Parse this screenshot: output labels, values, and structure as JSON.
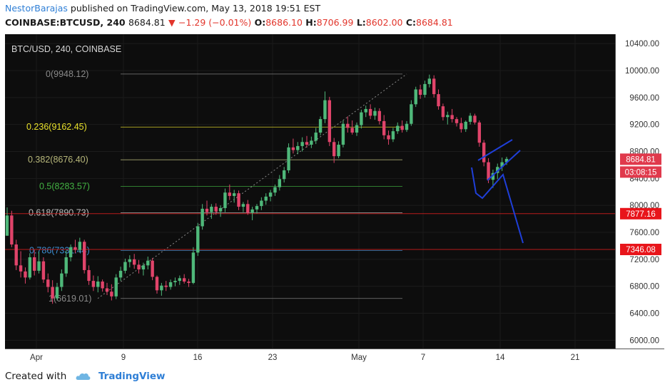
{
  "header": {
    "author": "NestorBarajas",
    "published_text": "published on TradingView.com, May 13, 2018 19:51 EST",
    "symbol": "COINBASE:BTCUSD, 240",
    "last": "8684.81",
    "change": "−1.29 (−0.01%)",
    "o_label": "O:",
    "o_value": "8686.10",
    "h_label": "H:",
    "h_value": "8706.99",
    "l_label": "L:",
    "l_value": "8602.00",
    "c_label": "C:",
    "c_value": "8684.81"
  },
  "footer": {
    "created_with": "Created with",
    "brand": "TradingView"
  },
  "chart_data": {
    "type": "candlestick",
    "title": "BTC/USD, 240, COINBASE",
    "ylim": [
      5800,
      10500
    ],
    "y_ticks": [
      "10400.00",
      "10000.00",
      "9600.00",
      "9200.00",
      "8800.00",
      "8400.00",
      "8000.00",
      "7600.00",
      "7200.00",
      "6800.00",
      "6400.00",
      "6000.00"
    ],
    "x_ticks": [
      "Apr",
      "9",
      "16",
      "23",
      "May",
      "7",
      "14",
      "21"
    ],
    "fibonacci": [
      {
        "label": "0(9948.12)",
        "price": 9948.12,
        "color": "#8a8a8a"
      },
      {
        "label": "0.236(9162.45)",
        "price": 9162.45,
        "color": "#e8e02a"
      },
      {
        "label": "0.382(8676.40)",
        "price": 8676.4,
        "color": "#b7b77a"
      },
      {
        "label": "0.5(8283.57)",
        "price": 8283.57,
        "color": "#43b343"
      },
      {
        "label": "0.618(7890.73)",
        "price": 7890.73,
        "color": "#bcbcbc"
      },
      {
        "label": "0.786(7331.44)",
        "price": 7331.44,
        "color": "#3a8fd4"
      },
      {
        "label": "1(6619.01)",
        "price": 6619.01,
        "color": "#8a8a8a"
      }
    ],
    "price_badges": [
      {
        "label": "8684.81",
        "color": "#e0394c"
      },
      {
        "label": "03:08:15",
        "color": "#e0394c"
      },
      {
        "label": "7877.16",
        "color": "#e8151b"
      },
      {
        "label": "7346.08",
        "color": "#e8151b"
      }
    ],
    "hlines": [
      7877.16,
      7346.08
    ],
    "ohlc": [
      [
        7550,
        7970,
        7550,
        7850
      ],
      [
        7850,
        7920,
        7380,
        7420
      ],
      [
        7420,
        7490,
        7040,
        7110
      ],
      [
        7110,
        7320,
        6930,
        7020
      ],
      [
        7020,
        7080,
        6840,
        6930
      ],
      [
        6930,
        7290,
        6900,
        7230
      ],
      [
        7230,
        7340,
        6960,
        7030
      ],
      [
        7030,
        7310,
        6990,
        7170
      ],
      [
        7170,
        7230,
        6850,
        6900
      ],
      [
        6900,
        6990,
        6710,
        6790
      ],
      [
        6790,
        6890,
        6540,
        6620
      ],
      [
        6620,
        6850,
        6590,
        6790
      ],
      [
        6790,
        7050,
        6730,
        6990
      ],
      [
        6990,
        7330,
        6940,
        7230
      ],
      [
        7230,
        7420,
        7170,
        7380
      ],
      [
        7380,
        7490,
        7290,
        7340
      ],
      [
        7340,
        7520,
        7300,
        7460
      ],
      [
        7460,
        7490,
        6990,
        7040
      ],
      [
        7040,
        7110,
        6820,
        6880
      ],
      [
        6880,
        6960,
        6730,
        6790
      ],
      [
        6790,
        6950,
        6710,
        6870
      ],
      [
        6870,
        6900,
        6720,
        6770
      ],
      [
        6770,
        6850,
        6670,
        6720
      ],
      [
        6720,
        6830,
        6590,
        6650
      ],
      [
        6650,
        6980,
        6610,
        6930
      ],
      [
        6930,
        7090,
        6880,
        7030
      ],
      [
        7030,
        7210,
        6990,
        7160
      ],
      [
        7160,
        7260,
        7080,
        7200
      ],
      [
        7200,
        7280,
        7060,
        7120
      ],
      [
        7120,
        7190,
        6990,
        7050
      ],
      [
        7050,
        7150,
        6960,
        7110
      ],
      [
        7110,
        7240,
        7050,
        7180
      ],
      [
        7180,
        7220,
        6890,
        6940
      ],
      [
        6940,
        6960,
        6690,
        6740
      ],
      [
        6740,
        6850,
        6660,
        6810
      ],
      [
        6810,
        6880,
        6730,
        6790
      ],
      [
        6790,
        6900,
        6750,
        6860
      ],
      [
        6860,
        6930,
        6800,
        6880
      ],
      [
        6880,
        6960,
        6820,
        6920
      ],
      [
        6920,
        6980,
        6840,
        6870
      ],
      [
        6870,
        6910,
        6790,
        6850
      ],
      [
        6850,
        7380,
        6830,
        7300
      ],
      [
        7300,
        7740,
        7250,
        7690
      ],
      [
        7690,
        8020,
        7640,
        7950
      ],
      [
        7950,
        8070,
        7850,
        7900
      ],
      [
        7900,
        8020,
        7800,
        7980
      ],
      [
        7980,
        8030,
        7860,
        7910
      ],
      [
        7910,
        8000,
        7830,
        7960
      ],
      [
        7960,
        8250,
        7900,
        8190
      ],
      [
        8190,
        8310,
        8080,
        8140
      ],
      [
        8140,
        8230,
        8040,
        8180
      ],
      [
        8180,
        8220,
        7930,
        7980
      ],
      [
        7980,
        8050,
        7900,
        8020
      ],
      [
        8020,
        8080,
        7860,
        7890
      ],
      [
        7890,
        7980,
        7780,
        7940
      ],
      [
        7940,
        8020,
        7880,
        7990
      ],
      [
        7990,
        8120,
        7930,
        8070
      ],
      [
        8070,
        8180,
        8010,
        8130
      ],
      [
        8130,
        8230,
        8060,
        8190
      ],
      [
        8190,
        8310,
        8140,
        8270
      ],
      [
        8270,
        8450,
        8220,
        8390
      ],
      [
        8390,
        8570,
        8340,
        8520
      ],
      [
        8520,
        8920,
        8480,
        8860
      ],
      [
        8860,
        8990,
        8770,
        8820
      ],
      [
        8820,
        8940,
        8760,
        8880
      ],
      [
        8880,
        9010,
        8800,
        8940
      ],
      [
        8940,
        9030,
        8860,
        8900
      ],
      [
        8900,
        9020,
        8850,
        8960
      ],
      [
        8960,
        9150,
        8910,
        9080
      ],
      [
        9080,
        9320,
        9040,
        9280
      ],
      [
        9280,
        9690,
        9220,
        9560
      ],
      [
        9560,
        9610,
        8880,
        8940
      ],
      [
        8940,
        9000,
        8630,
        8730
      ],
      [
        8730,
        8950,
        8700,
        8900
      ],
      [
        8900,
        9260,
        8860,
        9210
      ],
      [
        9210,
        9320,
        9080,
        9150
      ],
      [
        9150,
        9260,
        9050,
        9080
      ],
      [
        9080,
        9230,
        9030,
        9190
      ],
      [
        9190,
        9420,
        9140,
        9380
      ],
      [
        9380,
        9480,
        9310,
        9430
      ],
      [
        9430,
        9500,
        9280,
        9330
      ],
      [
        9330,
        9450,
        9270,
        9400
      ],
      [
        9400,
        9440,
        9200,
        9250
      ],
      [
        9250,
        9340,
        8980,
        9040
      ],
      [
        9040,
        9110,
        8900,
        8980
      ],
      [
        8980,
        9150,
        8940,
        9100
      ],
      [
        9100,
        9230,
        9060,
        9180
      ],
      [
        9180,
        9260,
        9080,
        9120
      ],
      [
        9120,
        9250,
        9090,
        9210
      ],
      [
        9210,
        9560,
        9180,
        9500
      ],
      [
        9500,
        9760,
        9460,
        9720
      ],
      [
        9720,
        9790,
        9580,
        9640
      ],
      [
        9640,
        9850,
        9600,
        9800
      ],
      [
        9800,
        9940,
        9750,
        9880
      ],
      [
        9880,
        9930,
        9600,
        9650
      ],
      [
        9650,
        9720,
        9420,
        9470
      ],
      [
        9470,
        9510,
        9260,
        9310
      ],
      [
        9310,
        9390,
        9200,
        9340
      ],
      [
        9340,
        9430,
        9230,
        9280
      ],
      [
        9280,
        9310,
        9170,
        9220
      ],
      [
        9220,
        9300,
        9080,
        9130
      ],
      [
        9130,
        9260,
        9090,
        9240
      ],
      [
        9240,
        9370,
        9200,
        9330
      ],
      [
        9330,
        9360,
        9200,
        9230
      ],
      [
        9230,
        9260,
        8870,
        8930
      ],
      [
        8930,
        8970,
        8580,
        8640
      ],
      [
        8640,
        8700,
        8330,
        8380
      ],
      [
        8380,
        8530,
        8260,
        8480
      ],
      [
        8480,
        8620,
        8390,
        8570
      ],
      [
        8570,
        8710,
        8510,
        8640
      ],
      [
        8640,
        8720,
        8600,
        8690
      ]
    ],
    "annotations": [
      "fibonacci retracement",
      "projected downtrend line (blue)"
    ]
  }
}
